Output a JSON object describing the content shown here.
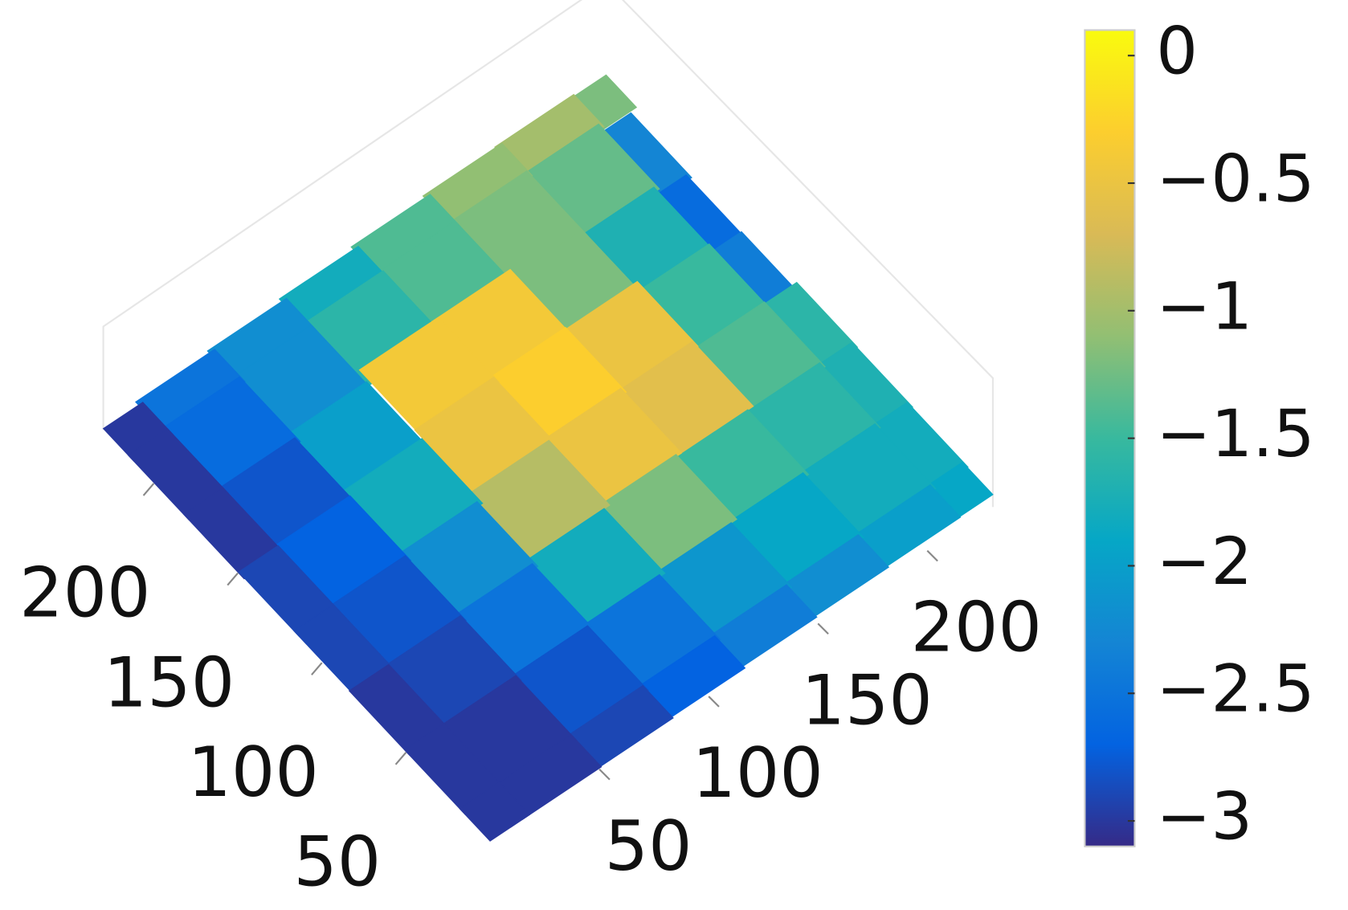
{
  "chart_data": {
    "type": "surface",
    "xlim": [
      0,
      230
    ],
    "ylim": [
      0,
      230
    ],
    "xticks": [
      50,
      100,
      150,
      200
    ],
    "yticks": [
      50,
      100,
      150,
      200
    ],
    "z": [
      [
        -3,
        -3,
        -2.9,
        -2.7,
        -2.4,
        -2.2,
        -2.0,
        -1.9
      ],
      [
        -3,
        -3,
        -2.8,
        -2.5,
        -2.1,
        -1.9,
        -1.8,
        -1.8
      ],
      [
        -3,
        -2.9,
        -2.5,
        -1.8,
        -1.2,
        -1.5,
        -1.6,
        -1.7
      ],
      [
        -2.9,
        -2.8,
        -2.2,
        -0.9,
        -0.5,
        -0.6,
        -1.4,
        -1.6
      ],
      [
        -2.9,
        -2.7,
        -1.8,
        -0.5,
        -0.3,
        -0.5,
        -1.5,
        -2.4
      ],
      [
        -3,
        -2.8,
        -2.0,
        -0.4,
        -0.4,
        -1.2,
        -1.7,
        -2.6
      ],
      [
        -3,
        -2.6,
        -2.2,
        -1.6,
        -1.4,
        -1.2,
        -1.3,
        -2.3
      ],
      [
        -3,
        -2.5,
        -2.2,
        -1.8,
        -1.4,
        -1.1,
        -1.0,
        -1.2
      ]
    ],
    "colormap": [
      "#352a87",
      "#0363e1",
      "#1485d4",
      "#06a7c6",
      "#38b99e",
      "#92bf73",
      "#d9ba56",
      "#fcce2e",
      "#f9fb0e"
    ],
    "colorbar": {
      "clim": [
        -3.1,
        0.1
      ],
      "ticks": [
        0,
        {
          "value": -0.5,
          "label": "−0.5"
        },
        {
          "value": -1,
          "label": "−1"
        },
        {
          "value": -1.5,
          "label": "−1.5"
        },
        {
          "value": -2,
          "label": "−2"
        },
        {
          "value": -2.5,
          "label": "−2.5"
        },
        {
          "value": -3,
          "label": "−3"
        }
      ]
    }
  }
}
